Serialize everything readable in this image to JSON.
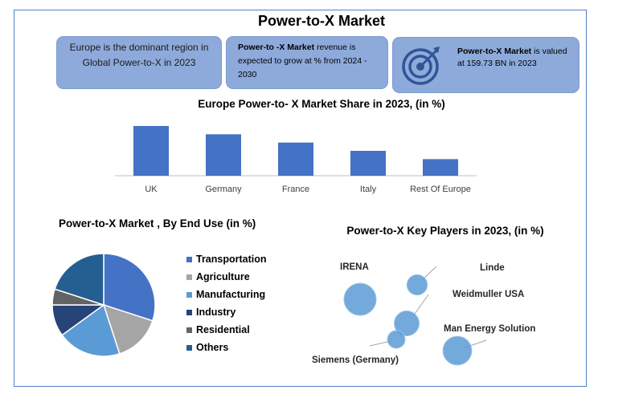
{
  "title": "Power-to-X Market",
  "cards": {
    "card1": "Europe is the dominant region in Global Power-to-X in 2023",
    "card2_bold": "Power-to -X Market",
    "card2_rest": " revenue is expected to grow at % from 2024 - 2030",
    "card3_bold": "Power-to-X Market",
    "card3_rest": " is valued at 159.73 BN in 2023",
    "card3_icon": "target-icon"
  },
  "colors": {
    "primary": "#4472c4",
    "card": "#8eaadb",
    "frame": "#4f81bd"
  },
  "chart_data": [
    {
      "type": "bar",
      "title": "Europe Power-to- X  Market Share in 2023,  (in %)",
      "categories": [
        "UK",
        "Germany",
        "France",
        "Italy",
        "Rest Of Europe"
      ],
      "values": [
        30,
        25,
        20,
        15,
        10
      ],
      "ylim": [
        0,
        30
      ],
      "grid": false
    },
    {
      "type": "pie",
      "title": "Power-to-X  Market , By End Use (in %)",
      "categories": [
        "Transportation",
        "Agriculture",
        "Manufacturing",
        "Industry",
        "Residential",
        "Others"
      ],
      "values": [
        30,
        15,
        20,
        10,
        5,
        20
      ],
      "colors": [
        "#4472c4",
        "#a5a5a5",
        "#5b9bd5",
        "#264478",
        "#636363",
        "#255e91"
      ],
      "legend": "right"
    },
    {
      "type": "scatter",
      "title": "Power-to-X Key Players in 2023, (in %)",
      "series": [
        {
          "name": "IRENA",
          "size": 40
        },
        {
          "name": "Linde",
          "size": 16
        },
        {
          "name": "Weidmuller USA",
          "size": 24
        },
        {
          "name": "Siemens (Germany)",
          "size": 12
        },
        {
          "name": "Man Energy Solution",
          "size": 32
        }
      ]
    }
  ]
}
